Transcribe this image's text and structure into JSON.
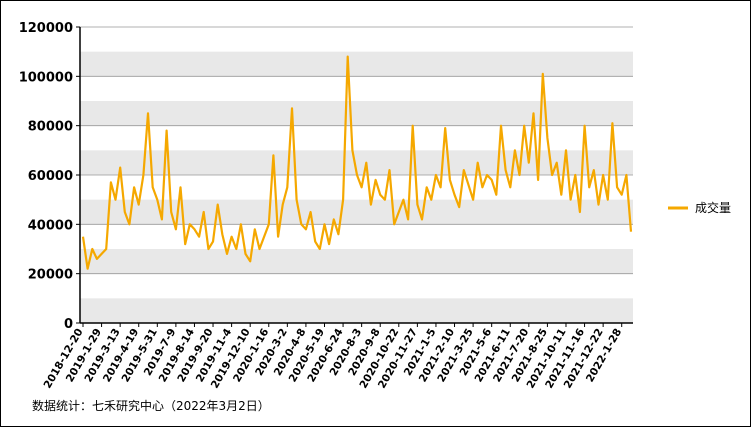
{
  "chart_data": {
    "type": "line",
    "source": "数据统计：七禾研究中心（2022年3月2日）",
    "categories": [
      "2018-12-20",
      null,
      null,
      null,
      "2019-1-29",
      null,
      null,
      null,
      "2019-3-13",
      null,
      null,
      null,
      "2019-4-19",
      null,
      null,
      null,
      "2019-5-31",
      null,
      null,
      null,
      "2019-7-9",
      null,
      null,
      null,
      "2019-8-14",
      null,
      null,
      null,
      "2019-9-20",
      null,
      null,
      null,
      "2019-11-4",
      null,
      null,
      null,
      "2019-12-10",
      null,
      null,
      null,
      "2020-1-16",
      null,
      null,
      null,
      "2020-3-2",
      null,
      null,
      null,
      "2020-4-8",
      null,
      null,
      null,
      "2020-5-19",
      null,
      null,
      null,
      "2020-6-24",
      null,
      null,
      null,
      "2020-8-3",
      null,
      null,
      null,
      "2020-9-8",
      null,
      null,
      null,
      "2020-10-22",
      null,
      null,
      null,
      "2020-11-27",
      null,
      null,
      null,
      "2021-1-5",
      null,
      null,
      null,
      "2021-2-10",
      null,
      null,
      null,
      "2021-3-25",
      null,
      null,
      null,
      "2021-5-6",
      null,
      null,
      null,
      "2021-6-11",
      null,
      null,
      null,
      "2021-7-20",
      null,
      null,
      null,
      "2021-8-25",
      null,
      null,
      null,
      "2021-10-11",
      null,
      null,
      null,
      "2021-11-16",
      null,
      null,
      null,
      "2021-12-22",
      null,
      null,
      null,
      "2022-1-28",
      null,
      null
    ],
    "series": [
      {
        "name": "成交量",
        "color": "#f5a800",
        "values": [
          35000,
          22000,
          30000,
          26000,
          28000,
          30000,
          57000,
          50000,
          63000,
          45000,
          40000,
          55000,
          48000,
          60000,
          85000,
          55000,
          50000,
          42000,
          78000,
          45000,
          38000,
          55000,
          32000,
          40000,
          38000,
          35000,
          45000,
          30000,
          33000,
          48000,
          36000,
          28000,
          35000,
          30000,
          40000,
          28000,
          25000,
          38000,
          30000,
          35000,
          40000,
          68000,
          35000,
          48000,
          55000,
          87000,
          50000,
          40000,
          38000,
          45000,
          33000,
          30000,
          40000,
          32000,
          42000,
          36000,
          50000,
          108000,
          70000,
          60000,
          55000,
          65000,
          48000,
          58000,
          52000,
          50000,
          62000,
          40000,
          45000,
          50000,
          42000,
          80000,
          48000,
          42000,
          55000,
          50000,
          60000,
          55000,
          79000,
          58000,
          52000,
          47000,
          62000,
          56000,
          50000,
          65000,
          55000,
          60000,
          58000,
          52000,
          80000,
          62000,
          55000,
          70000,
          60000,
          80000,
          65000,
          85000,
          58000,
          101000,
          75000,
          60000,
          65000,
          52000,
          70000,
          50000,
          60000,
          45000,
          80000,
          55000,
          62000,
          48000,
          60000,
          50000,
          81000,
          55000,
          52000,
          60000,
          37000
        ]
      }
    ],
    "ylim": [
      0,
      120000
    ],
    "yticks": [
      0,
      20000,
      40000,
      60000,
      80000,
      100000,
      120000
    ],
    "grid": true,
    "legend": "right"
  }
}
